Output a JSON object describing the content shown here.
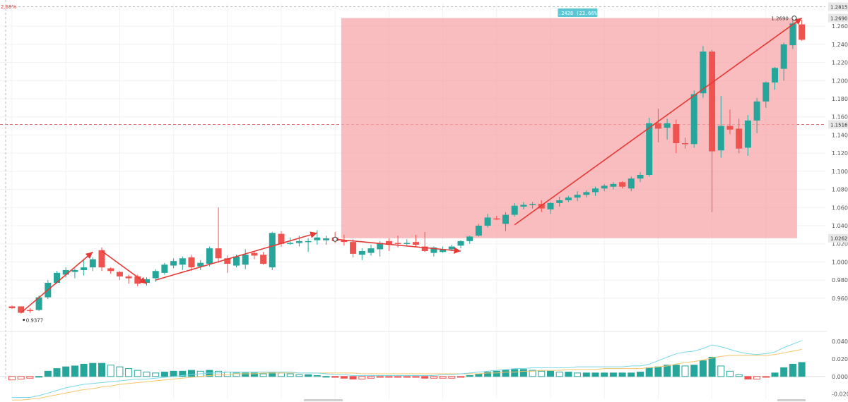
{
  "chart_data": {
    "type": "candlestick",
    "price_axis": {
      "range": [
        0.935,
        1.285
      ],
      "ticks": [
        "1.2600",
        "1.2400",
        "1.2200",
        "1.2000",
        "1.1800",
        "1.1600",
        "1.1400",
        "1.1200",
        "1.1000",
        "1.0800",
        "1.0600",
        "1.0400",
        "1.0200",
        "1.0000",
        "0.9800",
        "0.9600"
      ],
      "tick_values": [
        1.26,
        1.24,
        1.22,
        1.2,
        1.18,
        1.16,
        1.14,
        1.12,
        1.1,
        1.08,
        1.06,
        1.04,
        1.02,
        1.0,
        0.98,
        0.96
      ]
    },
    "price_badges": [
      {
        "label": "1.2815",
        "value": 1.2815
      },
      {
        "label": "1.2690",
        "value": 1.269
      },
      {
        "label": "1.1516",
        "value": 1.1516
      },
      {
        "label": "1.0262",
        "value": 1.0262
      }
    ],
    "candles": [
      [
        0.951,
        0.952,
        0.948,
        0.949
      ],
      [
        0.951,
        0.951,
        0.943,
        0.944
      ],
      [
        0.947,
        0.949,
        0.944,
        0.946
      ],
      [
        0.947,
        0.963,
        0.946,
        0.961
      ],
      [
        0.961,
        0.98,
        0.959,
        0.977
      ],
      [
        0.977,
        0.99,
        0.976,
        0.988
      ],
      [
        0.986,
        0.994,
        0.983,
        0.991
      ],
      [
        0.989,
        0.993,
        0.982,
        0.991
      ],
      [
        0.991,
        1.002,
        0.985,
        0.994
      ],
      [
        0.994,
        1.005,
        0.99,
        1.003
      ],
      [
        1.013,
        1.016,
        0.99,
        0.994
      ],
      [
        0.993,
        0.994,
        0.987,
        0.99
      ],
      [
        0.989,
        0.99,
        0.98,
        0.984
      ],
      [
        0.984,
        0.986,
        0.976,
        0.982
      ],
      [
        0.984,
        0.986,
        0.973,
        0.976
      ],
      [
        0.977,
        0.983,
        0.974,
        0.981
      ],
      [
        0.982,
        0.992,
        0.978,
        0.99
      ],
      [
        0.988,
        0.999,
        0.986,
        0.997
      ],
      [
        0.996,
        1.004,
        0.993,
        1.001
      ],
      [
        0.997,
        1.006,
        0.991,
        1.004
      ],
      [
        1.005,
        1.008,
        0.99,
        0.994
      ],
      [
        0.995,
        1.002,
        0.991,
        0.999
      ],
      [
        0.998,
        1.017,
        0.995,
        1.015
      ],
      [
        1.015,
        1.06,
        0.999,
        1.004
      ],
      [
        1.004,
        1.007,
        0.988,
        0.998
      ],
      [
        0.996,
        1.008,
        0.994,
        1.006
      ],
      [
        0.997,
        1.014,
        0.992,
        1.008
      ],
      [
        1.01,
        1.012,
        1.003,
        1.007
      ],
      [
        1.008,
        1.011,
        0.997,
        0.998
      ],
      [
        0.994,
        1.033,
        0.991,
        1.032
      ],
      [
        1.031,
        1.034,
        1.017,
        1.02
      ],
      [
        1.021,
        1.027,
        1.019,
        1.021
      ],
      [
        1.021,
        1.029,
        1.017,
        1.023
      ],
      [
        1.022,
        1.026,
        1.011,
        1.023
      ],
      [
        1.024,
        1.035,
        1.019,
        1.027
      ],
      [
        1.024,
        1.029,
        1.019,
        1.026
      ],
      [
        1.027,
        1.033,
        1.021,
        1.023
      ],
      [
        1.024,
        1.03,
        1.018,
        1.022
      ],
      [
        1.022,
        1.025,
        1.005,
        1.009
      ],
      [
        1.008,
        1.015,
        1.002,
        1.012
      ],
      [
        1.01,
        1.019,
        1.007,
        1.015
      ],
      [
        1.014,
        1.023,
        1.006,
        1.021
      ],
      [
        1.023,
        1.026,
        1.012,
        1.019
      ],
      [
        1.021,
        1.029,
        1.016,
        1.02
      ],
      [
        1.02,
        1.025,
        1.018,
        1.021
      ],
      [
        1.022,
        1.03,
        1.016,
        1.019
      ],
      [
        1.017,
        1.033,
        1.011,
        1.012
      ],
      [
        1.01,
        1.017,
        1.006,
        1.016
      ],
      [
        1.011,
        1.017,
        1.01,
        1.014
      ],
      [
        1.014,
        1.019,
        1.012,
        1.017
      ],
      [
        1.018,
        1.024,
        1.015,
        1.023
      ],
      [
        1.023,
        1.029,
        1.02,
        1.028
      ],
      [
        1.029,
        1.042,
        1.028,
        1.04
      ],
      [
        1.04,
        1.053,
        1.038,
        1.049
      ],
      [
        1.048,
        1.051,
        1.046,
        1.047
      ],
      [
        1.042,
        1.055,
        1.034,
        1.052
      ],
      [
        1.052,
        1.065,
        1.05,
        1.062
      ],
      [
        1.061,
        1.066,
        1.058,
        1.063
      ],
      [
        1.063,
        1.066,
        1.059,
        1.064
      ],
      [
        1.064,
        1.068,
        1.055,
        1.059
      ],
      [
        1.058,
        1.066,
        1.053,
        1.065
      ],
      [
        1.065,
        1.072,
        1.061,
        1.068
      ],
      [
        1.068,
        1.073,
        1.066,
        1.071
      ],
      [
        1.071,
        1.078,
        1.067,
        1.074
      ],
      [
        1.074,
        1.079,
        1.071,
        1.077
      ],
      [
        1.077,
        1.083,
        1.073,
        1.081
      ],
      [
        1.081,
        1.086,
        1.078,
        1.084
      ],
      [
        1.083,
        1.088,
        1.08,
        1.086
      ],
      [
        1.088,
        1.089,
        1.081,
        1.083
      ],
      [
        1.081,
        1.094,
        1.078,
        1.092
      ],
      [
        1.092,
        1.099,
        1.088,
        1.096
      ],
      [
        1.096,
        1.159,
        1.094,
        1.153
      ],
      [
        1.153,
        1.169,
        1.132,
        1.147
      ],
      [
        1.148,
        1.158,
        1.135,
        1.153
      ],
      [
        1.152,
        1.157,
        1.12,
        1.131
      ],
      [
        1.131,
        1.137,
        1.125,
        1.13
      ],
      [
        1.13,
        1.189,
        1.126,
        1.185
      ],
      [
        1.186,
        1.238,
        1.181,
        1.232
      ],
      [
        1.232,
        1.234,
        1.055,
        1.122
      ],
      [
        1.123,
        1.183,
        1.115,
        1.15
      ],
      [
        1.15,
        1.168,
        1.141,
        1.146
      ],
      [
        1.147,
        1.158,
        1.12,
        1.125
      ],
      [
        1.126,
        1.162,
        1.117,
        1.156
      ],
      [
        1.156,
        1.181,
        1.142,
        1.177
      ],
      [
        1.177,
        1.199,
        1.17,
        1.198
      ],
      [
        1.198,
        1.215,
        1.19,
        1.214
      ],
      [
        1.213,
        1.242,
        1.2,
        1.24
      ],
      [
        1.239,
        1.269,
        1.235,
        1.263
      ],
      [
        1.262,
        1.267,
        1.244,
        1.245
      ]
    ],
    "range_box": {
      "start_index": 37,
      "end_index": 87,
      "top": 1.269,
      "bottom": 1.0262,
      "label": "0.2428 (23.66%)"
    },
    "annotations": [
      {
        "label": "0.9377",
        "value": 0.9377
      },
      {
        "label": "1.2690",
        "value": 1.269
      },
      {
        "label": "2.08%",
        "value": 1.2815
      }
    ],
    "trend_lines": [
      {
        "from": [
          1,
          0.944
        ],
        "to": [
          9,
          1.011
        ],
        "arrow": true
      },
      {
        "from": [
          10,
          1.012
        ],
        "to": [
          15,
          0.976
        ],
        "arrow": true
      },
      {
        "from": [
          16,
          0.98
        ],
        "to": [
          34,
          1.032
        ],
        "arrow": true
      },
      {
        "from": [
          36,
          1.025
        ],
        "to": [
          50,
          1.012
        ],
        "arrow": true
      },
      {
        "from": [
          56,
          1.041
        ],
        "to": [
          88,
          1.269
        ],
        "arrow": true
      }
    ],
    "indicator": {
      "range": [
        -0.026,
        0.045
      ],
      "ticks": [
        "0.0400",
        "0.0200",
        "0.0000",
        "-0.0200"
      ],
      "tick_values": [
        0.04,
        0.02,
        0.0,
        -0.02
      ],
      "histogram": [
        -0.004,
        -0.003,
        -0.002,
        0.0,
        0.006,
        0.009,
        0.011,
        0.012,
        0.014,
        0.015,
        0.015,
        0.013,
        0.011,
        0.009,
        0.007,
        0.005,
        0.004,
        0.005,
        0.006,
        0.006,
        0.007,
        0.006,
        0.007,
        0.006,
        0.005,
        0.004,
        0.004,
        0.004,
        0.003,
        0.005,
        0.004,
        0.003,
        0.002,
        0.002,
        0.001,
        0.0,
        -0.001,
        -0.002,
        -0.003,
        -0.003,
        -0.002,
        -0.001,
        -0.001,
        -0.001,
        -0.001,
        -0.001,
        -0.002,
        -0.002,
        -0.002,
        -0.002,
        -0.001,
        0.001,
        0.003,
        0.005,
        0.006,
        0.007,
        0.008,
        0.008,
        0.007,
        0.006,
        0.006,
        0.005,
        0.005,
        0.004,
        0.004,
        0.004,
        0.004,
        0.004,
        0.004,
        0.004,
        0.005,
        0.01,
        0.011,
        0.013,
        0.013,
        0.012,
        0.013,
        0.018,
        0.022,
        0.012,
        0.006,
        0.002,
        -0.003,
        -0.003,
        -0.001,
        0.004,
        0.01,
        0.014,
        0.016
      ],
      "fast_line": [
        -0.024,
        -0.024,
        -0.024,
        -0.022,
        -0.019,
        -0.016,
        -0.013,
        -0.011,
        -0.009,
        -0.008,
        -0.007,
        -0.006,
        -0.005,
        -0.004,
        -0.003,
        -0.003,
        -0.002,
        -0.001,
        0.0,
        0.001,
        0.002,
        0.003,
        0.004,
        0.004,
        0.005,
        0.005,
        0.005,
        0.005,
        0.005,
        0.005,
        0.005,
        0.005,
        0.004,
        0.004,
        0.004,
        0.003,
        0.002,
        0.002,
        0.001,
        0.001,
        0.001,
        0.001,
        0.001,
        0.001,
        0.001,
        0.001,
        0.001,
        0.001,
        0.002,
        0.002,
        0.003,
        0.004,
        0.005,
        0.006,
        0.007,
        0.008,
        0.009,
        0.009,
        0.01,
        0.01,
        0.01,
        0.01,
        0.01,
        0.011,
        0.011,
        0.011,
        0.011,
        0.011,
        0.011,
        0.012,
        0.012,
        0.014,
        0.018,
        0.022,
        0.026,
        0.028,
        0.029,
        0.032,
        0.036,
        0.034,
        0.031,
        0.028,
        0.026,
        0.025,
        0.026,
        0.028,
        0.033,
        0.037,
        0.041
      ],
      "slow_line": [
        -0.027,
        -0.027,
        -0.026,
        -0.025,
        -0.023,
        -0.021,
        -0.019,
        -0.017,
        -0.015,
        -0.014,
        -0.012,
        -0.011,
        -0.009,
        -0.008,
        -0.007,
        -0.006,
        -0.005,
        -0.004,
        -0.003,
        -0.002,
        -0.001,
        0.0,
        0.001,
        0.002,
        0.002,
        0.003,
        0.003,
        0.003,
        0.004,
        0.004,
        0.004,
        0.004,
        0.004,
        0.004,
        0.004,
        0.004,
        0.004,
        0.004,
        0.004,
        0.003,
        0.003,
        0.003,
        0.003,
        0.003,
        0.003,
        0.003,
        0.003,
        0.003,
        0.003,
        0.003,
        0.003,
        0.003,
        0.003,
        0.004,
        0.004,
        0.005,
        0.005,
        0.006,
        0.006,
        0.007,
        0.007,
        0.007,
        0.008,
        0.008,
        0.008,
        0.008,
        0.009,
        0.009,
        0.009,
        0.009,
        0.009,
        0.01,
        0.011,
        0.012,
        0.014,
        0.016,
        0.017,
        0.019,
        0.021,
        0.023,
        0.024,
        0.024,
        0.024,
        0.024,
        0.024,
        0.025,
        0.027,
        0.029,
        0.031
      ]
    },
    "colors": {
      "up": "#26a69a",
      "down": "#ef5350",
      "range_box_fill": "#f7a6aa",
      "trend_line": "#e53935",
      "label_badge_bg": "#5cc6d3",
      "fast_line": "#78d7e6",
      "slow_line": "#f4c66b"
    },
    "grid": true
  }
}
